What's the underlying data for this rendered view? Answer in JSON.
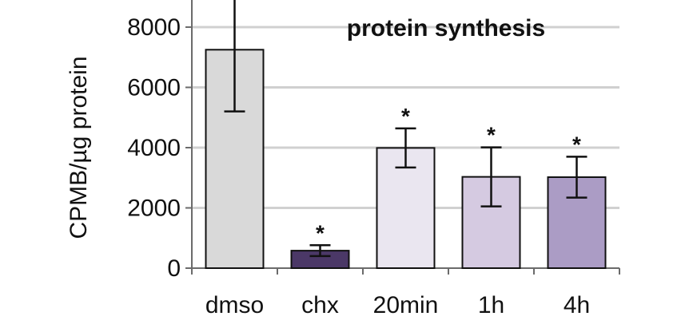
{
  "chart_data": {
    "type": "bar",
    "title": "protein synthesis",
    "xlabel": "",
    "ylabel": "CPMB/µg protein",
    "ylim": [
      0,
      8900
    ],
    "yticks": [
      0,
      2000,
      4000,
      6000,
      8000
    ],
    "ytick_labels": [
      "0",
      "2000",
      "4000",
      "6000",
      "8000"
    ],
    "grid": true,
    "categories": [
      "dmso",
      "chx",
      "20min",
      "1h",
      "4h"
    ],
    "values": [
      7250,
      580,
      3990,
      3030,
      3020
    ],
    "errors": [
      2050,
      180,
      650,
      980,
      680
    ],
    "significance": [
      "",
      "*",
      "*",
      "*",
      "*"
    ],
    "colors": [
      "#d9d9d9",
      "#4b3867",
      "#eae6f0",
      "#d5cae1",
      "#ab9cc5"
    ]
  }
}
